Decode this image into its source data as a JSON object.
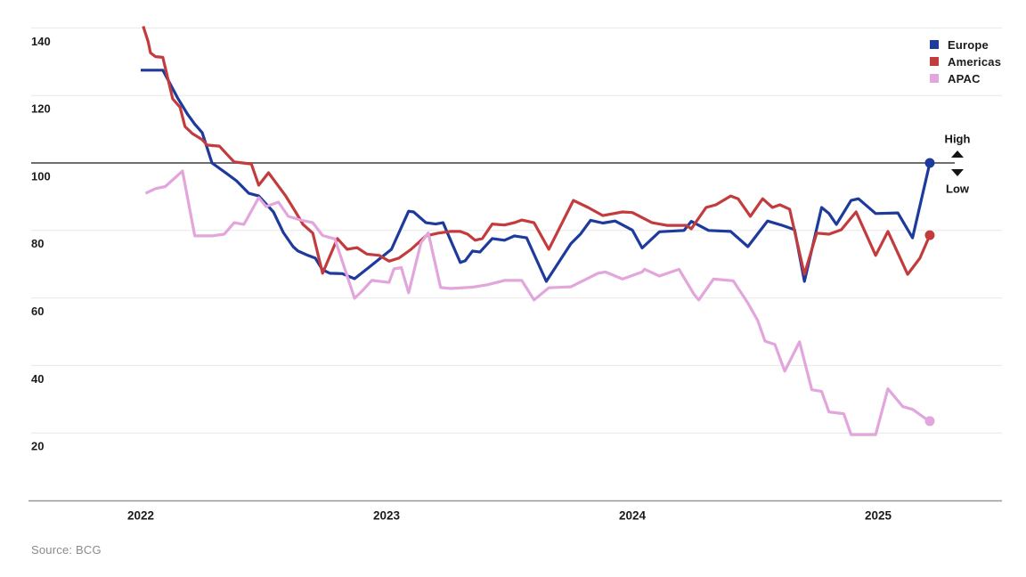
{
  "page": {
    "background": "#ffffff"
  },
  "colors": {
    "grid": "#e9e7e7",
    "reference_line": "#6e6e6e",
    "axis_line": "#979797",
    "tick_text": "#1b1b1b",
    "annotation_text": "#141414",
    "source_text": "#8a8a8a"
  },
  "legend": {
    "items": [
      {
        "label": "Europe",
        "color": "#1e3a9c"
      },
      {
        "label": "Americas",
        "color": "#c23c3e"
      },
      {
        "label": "APAC",
        "color": "#e2a5dc"
      }
    ]
  },
  "annotations": {
    "high_label": "High",
    "low_label": "Low"
  },
  "source": {
    "text": "Source: BCG"
  },
  "chart_data": {
    "type": "line",
    "title": "",
    "xlabel": "",
    "ylabel": "",
    "x_axis": {
      "ticks": [
        2022,
        2023,
        2024,
        2025
      ],
      "tick_labels": [
        "2022",
        "2023",
        "2024",
        "2025"
      ],
      "range": [
        2021.55,
        2025.6
      ]
    },
    "y_axis": {
      "gridline_values": [
        140,
        120,
        100,
        80,
        60,
        40,
        20
      ],
      "tick_labels": [
        "140",
        "120",
        "100",
        "80",
        "60",
        "40",
        "20"
      ],
      "range": [
        0,
        145
      ],
      "grid": true
    },
    "reference_line": {
      "value": 100,
      "high_label": "High",
      "low_label": "Low"
    },
    "legend_position": "top-right",
    "series": [
      {
        "name": "Europe",
        "color": "#1e3a9c",
        "endpoint_dot": true,
        "points": [
          [
            2022.0,
            127.5
          ],
          [
            2022.09,
            127.5
          ],
          [
            2022.15,
            119.3
          ],
          [
            2022.19,
            114.5
          ],
          [
            2022.22,
            111.5
          ],
          [
            2022.25,
            109.0
          ],
          [
            2022.27,
            104.5
          ],
          [
            2022.29,
            100.0
          ],
          [
            2022.34,
            97.4
          ],
          [
            2022.39,
            94.7
          ],
          [
            2022.44,
            91.0
          ],
          [
            2022.48,
            90.2
          ],
          [
            2022.54,
            85.5
          ],
          [
            2022.58,
            79.4
          ],
          [
            2022.62,
            75.2
          ],
          [
            2022.64,
            73.9
          ],
          [
            2022.68,
            72.6
          ],
          [
            2022.71,
            71.8
          ],
          [
            2022.74,
            68.3
          ],
          [
            2022.77,
            67.3
          ],
          [
            2022.82,
            67.2
          ],
          [
            2022.87,
            65.7
          ],
          [
            2022.94,
            69.7
          ],
          [
            2023.02,
            74.4
          ],
          [
            2023.09,
            85.7
          ],
          [
            2023.11,
            85.5
          ],
          [
            2023.16,
            82.3
          ],
          [
            2023.2,
            81.9
          ],
          [
            2023.23,
            82.3
          ],
          [
            2023.25,
            78.9
          ],
          [
            2023.3,
            70.5
          ],
          [
            2023.32,
            71.0
          ],
          [
            2023.35,
            73.9
          ],
          [
            2023.38,
            73.6
          ],
          [
            2023.43,
            77.6
          ],
          [
            2023.48,
            77.1
          ],
          [
            2023.52,
            78.4
          ],
          [
            2023.57,
            77.8
          ],
          [
            2023.65,
            64.9
          ],
          [
            2023.75,
            76.1
          ],
          [
            2023.79,
            79.0
          ],
          [
            2023.83,
            83.0
          ],
          [
            2023.88,
            82.2
          ],
          [
            2023.93,
            82.8
          ],
          [
            2024.0,
            80.1
          ],
          [
            2024.04,
            74.8
          ],
          [
            2024.11,
            79.6
          ],
          [
            2024.21,
            80.0
          ],
          [
            2024.24,
            82.7
          ],
          [
            2024.31,
            80.0
          ],
          [
            2024.4,
            79.7
          ],
          [
            2024.47,
            75.2
          ],
          [
            2024.55,
            82.8
          ],
          [
            2024.61,
            81.5
          ],
          [
            2024.66,
            80.2
          ],
          [
            2024.7,
            64.9
          ],
          [
            2024.77,
            86.8
          ],
          [
            2024.8,
            85.0
          ],
          [
            2024.83,
            81.8
          ],
          [
            2024.89,
            88.9
          ],
          [
            2024.92,
            89.4
          ],
          [
            2024.99,
            85.0
          ],
          [
            2025.08,
            85.2
          ],
          [
            2025.14,
            77.8
          ],
          [
            2025.21,
            100.0
          ]
        ]
      },
      {
        "name": "Americas",
        "color": "#c23c3e",
        "endpoint_dot": true,
        "points": [
          [
            2022.01,
            140.5
          ],
          [
            2022.03,
            136.0
          ],
          [
            2022.04,
            132.6
          ],
          [
            2022.06,
            131.5
          ],
          [
            2022.09,
            131.3
          ],
          [
            2022.13,
            119.0
          ],
          [
            2022.16,
            116.5
          ],
          [
            2022.18,
            110.8
          ],
          [
            2022.21,
            108.7
          ],
          [
            2022.25,
            106.9
          ],
          [
            2022.27,
            105.3
          ],
          [
            2022.32,
            105.0
          ],
          [
            2022.35,
            102.6
          ],
          [
            2022.38,
            100.3
          ],
          [
            2022.45,
            99.7
          ],
          [
            2022.48,
            93.4
          ],
          [
            2022.52,
            97.1
          ],
          [
            2022.59,
            90.2
          ],
          [
            2022.63,
            85.5
          ],
          [
            2022.66,
            81.8
          ],
          [
            2022.7,
            79.2
          ],
          [
            2022.74,
            67.3
          ],
          [
            2022.8,
            77.6
          ],
          [
            2022.84,
            74.4
          ],
          [
            2022.88,
            74.9
          ],
          [
            2022.92,
            73.0
          ],
          [
            2022.97,
            72.6
          ],
          [
            2023.01,
            70.9
          ],
          [
            2023.05,
            71.8
          ],
          [
            2023.1,
            74.4
          ],
          [
            2023.16,
            78.4
          ],
          [
            2023.21,
            79.2
          ],
          [
            2023.26,
            79.7
          ],
          [
            2023.3,
            79.7
          ],
          [
            2023.33,
            78.9
          ],
          [
            2023.36,
            77.1
          ],
          [
            2023.39,
            77.6
          ],
          [
            2023.43,
            81.9
          ],
          [
            2023.48,
            81.6
          ],
          [
            2023.52,
            82.3
          ],
          [
            2023.55,
            83.1
          ],
          [
            2023.6,
            82.3
          ],
          [
            2023.66,
            74.4
          ],
          [
            2023.76,
            88.9
          ],
          [
            2023.82,
            86.8
          ],
          [
            2023.88,
            84.4
          ],
          [
            2023.96,
            85.5
          ],
          [
            2024.0,
            85.3
          ],
          [
            2024.08,
            82.3
          ],
          [
            2024.14,
            81.5
          ],
          [
            2024.22,
            81.5
          ],
          [
            2024.24,
            80.5
          ],
          [
            2024.3,
            86.8
          ],
          [
            2024.34,
            87.6
          ],
          [
            2024.4,
            90.2
          ],
          [
            2024.43,
            89.4
          ],
          [
            2024.48,
            84.2
          ],
          [
            2024.53,
            89.4
          ],
          [
            2024.57,
            86.8
          ],
          [
            2024.6,
            87.6
          ],
          [
            2024.64,
            86.3
          ],
          [
            2024.7,
            67.0
          ],
          [
            2024.75,
            79.2
          ],
          [
            2024.8,
            78.9
          ],
          [
            2024.85,
            80.2
          ],
          [
            2024.91,
            85.5
          ],
          [
            2024.99,
            72.6
          ],
          [
            2025.04,
            79.7
          ],
          [
            2025.12,
            67.0
          ],
          [
            2025.17,
            71.8
          ],
          [
            2025.21,
            78.6
          ]
        ]
      },
      {
        "name": "APAC",
        "color": "#e2a5dc",
        "endpoint_dot": true,
        "points": [
          [
            2022.02,
            91.0
          ],
          [
            2022.06,
            92.4
          ],
          [
            2022.1,
            93.0
          ],
          [
            2022.17,
            97.6
          ],
          [
            2022.22,
            78.4
          ],
          [
            2022.29,
            78.4
          ],
          [
            2022.34,
            78.9
          ],
          [
            2022.38,
            82.3
          ],
          [
            2022.42,
            81.8
          ],
          [
            2022.48,
            89.7
          ],
          [
            2022.51,
            87.1
          ],
          [
            2022.56,
            88.4
          ],
          [
            2022.6,
            84.2
          ],
          [
            2022.65,
            83.1
          ],
          [
            2022.7,
            82.3
          ],
          [
            2022.74,
            78.5
          ],
          [
            2022.79,
            77.5
          ],
          [
            2022.87,
            59.9
          ],
          [
            2022.9,
            62.0
          ],
          [
            2022.94,
            65.2
          ],
          [
            2023.01,
            64.6
          ],
          [
            2023.03,
            68.6
          ],
          [
            2023.06,
            69.0
          ],
          [
            2023.09,
            61.5
          ],
          [
            2023.14,
            76.3
          ],
          [
            2023.17,
            79.3
          ],
          [
            2023.22,
            63.1
          ],
          [
            2023.26,
            62.8
          ],
          [
            2023.35,
            63.2
          ],
          [
            2023.41,
            63.9
          ],
          [
            2023.48,
            65.2
          ],
          [
            2023.55,
            65.2
          ],
          [
            2023.6,
            59.4
          ],
          [
            2023.66,
            63.0
          ],
          [
            2023.75,
            63.3
          ],
          [
            2023.86,
            67.3
          ],
          [
            2023.89,
            67.7
          ],
          [
            2023.96,
            65.6
          ],
          [
            2024.04,
            67.7
          ],
          [
            2024.05,
            68.5
          ],
          [
            2024.11,
            66.5
          ],
          [
            2024.19,
            68.5
          ],
          [
            2024.25,
            61.2
          ],
          [
            2024.27,
            59.4
          ],
          [
            2024.33,
            65.6
          ],
          [
            2024.41,
            65.1
          ],
          [
            2024.47,
            58.5
          ],
          [
            2024.51,
            53.3
          ],
          [
            2024.54,
            47.2
          ],
          [
            2024.58,
            46.2
          ],
          [
            2024.62,
            38.3
          ],
          [
            2024.68,
            47.0
          ],
          [
            2024.73,
            32.8
          ],
          [
            2024.77,
            32.3
          ],
          [
            2024.8,
            26.2
          ],
          [
            2024.86,
            25.7
          ],
          [
            2024.89,
            19.5
          ],
          [
            2024.99,
            19.5
          ],
          [
            2025.04,
            33.1
          ],
          [
            2025.1,
            27.8
          ],
          [
            2025.14,
            27.0
          ],
          [
            2025.19,
            24.4
          ],
          [
            2025.21,
            23.5
          ]
        ]
      }
    ]
  }
}
